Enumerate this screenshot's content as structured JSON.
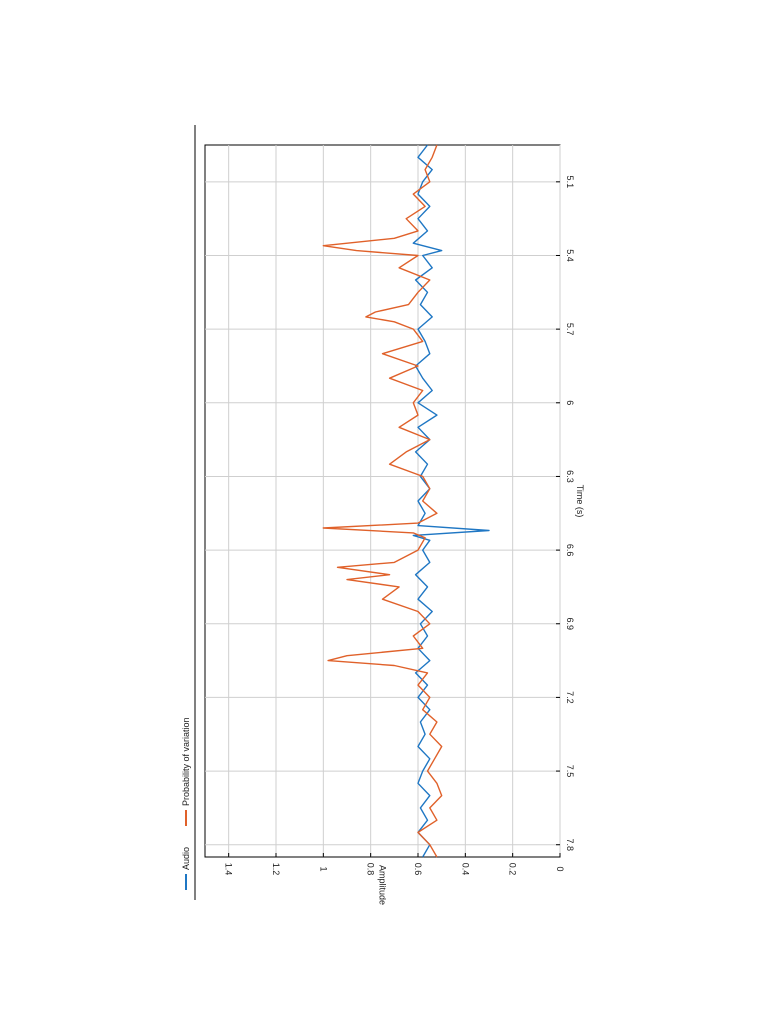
{
  "chart_data": {
    "type": "line",
    "orientation": "rotated-90-clockwise",
    "xlabel": "Time (s)",
    "ylabel": "Amplitude",
    "xlim": [
      4.95,
      7.85
    ],
    "ylim": [
      0,
      1.5
    ],
    "xticks": [
      5.1,
      5.4,
      5.7,
      6,
      6.3,
      6.6,
      6.9,
      7.2,
      7.5,
      7.8
    ],
    "xtick_labels": [
      "5.1",
      "5.4",
      "5.7",
      "6",
      "6.3",
      "6.6",
      "6.9",
      "7.2",
      "7.5",
      "7.8"
    ],
    "yticks": [
      0,
      0.2,
      0.4,
      0.6,
      0.8,
      1,
      1.2,
      1.4
    ],
    "ytick_labels": [
      "0",
      "0.2",
      "0.4",
      "0.6",
      "0.8",
      "1",
      "1.2",
      "1.4"
    ],
    "grid": true,
    "legend": "top",
    "colors": {
      "audio": "#1f77c4",
      "probability": "#e0612a"
    },
    "series": [
      {
        "name": "Audio",
        "color": "#1f77c4",
        "points": [
          [
            4.95,
            0.56
          ],
          [
            5.0,
            0.6
          ],
          [
            5.05,
            0.54
          ],
          [
            5.1,
            0.58
          ],
          [
            5.15,
            0.6
          ],
          [
            5.2,
            0.55
          ],
          [
            5.25,
            0.6
          ],
          [
            5.3,
            0.56
          ],
          [
            5.35,
            0.62
          ],
          [
            5.38,
            0.5
          ],
          [
            5.4,
            0.58
          ],
          [
            5.45,
            0.54
          ],
          [
            5.5,
            0.61
          ],
          [
            5.55,
            0.56
          ],
          [
            5.6,
            0.59
          ],
          [
            5.65,
            0.54
          ],
          [
            5.7,
            0.6
          ],
          [
            5.75,
            0.57
          ],
          [
            5.8,
            0.55
          ],
          [
            5.85,
            0.61
          ],
          [
            5.9,
            0.58
          ],
          [
            5.95,
            0.54
          ],
          [
            6.0,
            0.6
          ],
          [
            6.05,
            0.52
          ],
          [
            6.1,
            0.6
          ],
          [
            6.15,
            0.55
          ],
          [
            6.2,
            0.61
          ],
          [
            6.25,
            0.56
          ],
          [
            6.3,
            0.59
          ],
          [
            6.35,
            0.55
          ],
          [
            6.4,
            0.6
          ],
          [
            6.45,
            0.57
          ],
          [
            6.5,
            0.6
          ],
          [
            6.52,
            0.3
          ],
          [
            6.54,
            0.62
          ],
          [
            6.56,
            0.55
          ],
          [
            6.6,
            0.58
          ],
          [
            6.65,
            0.55
          ],
          [
            6.7,
            0.61
          ],
          [
            6.75,
            0.56
          ],
          [
            6.8,
            0.6
          ],
          [
            6.85,
            0.54
          ],
          [
            6.9,
            0.59
          ],
          [
            6.95,
            0.56
          ],
          [
            7.0,
            0.6
          ],
          [
            7.05,
            0.55
          ],
          [
            7.1,
            0.61
          ],
          [
            7.15,
            0.56
          ],
          [
            7.2,
            0.6
          ],
          [
            7.25,
            0.55
          ],
          [
            7.3,
            0.59
          ],
          [
            7.35,
            0.57
          ],
          [
            7.4,
            0.6
          ],
          [
            7.45,
            0.55
          ],
          [
            7.5,
            0.58
          ],
          [
            7.55,
            0.6
          ],
          [
            7.6,
            0.55
          ],
          [
            7.65,
            0.59
          ],
          [
            7.7,
            0.56
          ],
          [
            7.75,
            0.6
          ],
          [
            7.8,
            0.55
          ],
          [
            7.85,
            0.58
          ]
        ]
      },
      {
        "name": "Probability of variation",
        "color": "#e0612a",
        "points": [
          [
            4.95,
            0.52
          ],
          [
            5.0,
            0.54
          ],
          [
            5.05,
            0.57
          ],
          [
            5.1,
            0.55
          ],
          [
            5.15,
            0.62
          ],
          [
            5.2,
            0.57
          ],
          [
            5.25,
            0.65
          ],
          [
            5.3,
            0.6
          ],
          [
            5.33,
            0.7
          ],
          [
            5.36,
            1.0
          ],
          [
            5.38,
            0.86
          ],
          [
            5.4,
            0.6
          ],
          [
            5.45,
            0.68
          ],
          [
            5.5,
            0.55
          ],
          [
            5.55,
            0.6
          ],
          [
            5.6,
            0.64
          ],
          [
            5.63,
            0.78
          ],
          [
            5.65,
            0.82
          ],
          [
            5.67,
            0.7
          ],
          [
            5.7,
            0.62
          ],
          [
            5.75,
            0.58
          ],
          [
            5.8,
            0.75
          ],
          [
            5.85,
            0.6
          ],
          [
            5.9,
            0.72
          ],
          [
            5.95,
            0.58
          ],
          [
            6.0,
            0.62
          ],
          [
            6.05,
            0.6
          ],
          [
            6.1,
            0.68
          ],
          [
            6.15,
            0.55
          ],
          [
            6.2,
            0.65
          ],
          [
            6.25,
            0.72
          ],
          [
            6.3,
            0.58
          ],
          [
            6.35,
            0.55
          ],
          [
            6.4,
            0.58
          ],
          [
            6.45,
            0.52
          ],
          [
            6.49,
            0.6
          ],
          [
            6.51,
            1.0
          ],
          [
            6.53,
            0.62
          ],
          [
            6.55,
            0.57
          ],
          [
            6.6,
            0.6
          ],
          [
            6.65,
            0.7
          ],
          [
            6.67,
            0.94
          ],
          [
            6.7,
            0.72
          ],
          [
            6.72,
            0.9
          ],
          [
            6.75,
            0.68
          ],
          [
            6.8,
            0.75
          ],
          [
            6.85,
            0.6
          ],
          [
            6.9,
            0.55
          ],
          [
            6.95,
            0.62
          ],
          [
            7.0,
            0.58
          ],
          [
            7.03,
            0.9
          ],
          [
            7.05,
            0.98
          ],
          [
            7.07,
            0.7
          ],
          [
            7.1,
            0.56
          ],
          [
            7.15,
            0.6
          ],
          [
            7.2,
            0.55
          ],
          [
            7.25,
            0.58
          ],
          [
            7.3,
            0.52
          ],
          [
            7.35,
            0.55
          ],
          [
            7.4,
            0.5
          ],
          [
            7.45,
            0.53
          ],
          [
            7.5,
            0.56
          ],
          [
            7.55,
            0.52
          ],
          [
            7.6,
            0.5
          ],
          [
            7.65,
            0.55
          ],
          [
            7.7,
            0.52
          ],
          [
            7.75,
            0.6
          ],
          [
            7.8,
            0.55
          ],
          [
            7.85,
            0.52
          ]
        ]
      }
    ]
  }
}
